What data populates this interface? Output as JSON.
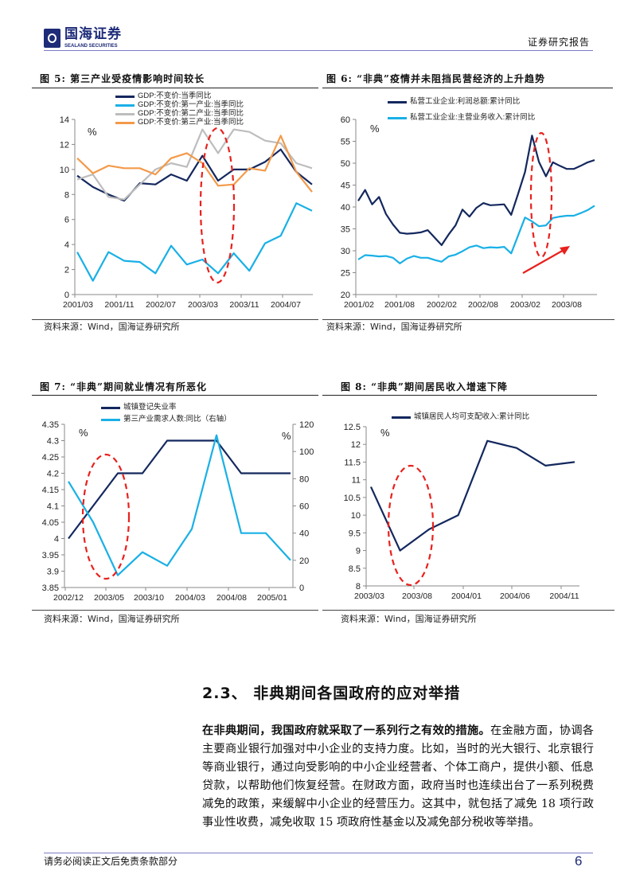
{
  "header": {
    "logo_cn": "国海证券",
    "logo_en": "SEALAND SECURITIES",
    "report_type": "证券研究报告"
  },
  "chart_data": [
    {
      "type": "line",
      "title": "图 5: 第三产业受疫情影响时间较长",
      "ylabel": "%",
      "ylim": [
        0,
        14
      ],
      "yticks": [
        0,
        2,
        4,
        6,
        8,
        10,
        12,
        14
      ],
      "xtick_labels": [
        "2001/03",
        "2001/11",
        "2002/07",
        "2003/03",
        "2003/11",
        "2004/07"
      ],
      "series": [
        {
          "name": "GDP:不变价:当季同比",
          "color": "#14285e",
          "values": [
            9.5,
            8.6,
            8.0,
            7.5,
            8.9,
            8.8,
            9.6,
            9.1,
            11.1,
            9.1,
            10.0,
            10.0,
            10.6,
            11.6,
            9.8,
            8.8
          ]
        },
        {
          "name": "GDP:不变价:第一产业:当季同比",
          "color": "#19b0e6",
          "values": [
            3.4,
            1.1,
            3.4,
            2.7,
            2.6,
            1.7,
            3.9,
            2.4,
            2.8,
            1.7,
            3.3,
            1.9,
            4.1,
            4.7,
            7.3,
            6.7
          ]
        },
        {
          "name": "GDP:不变价:第二产业:当季同比",
          "color": "#bdbdbd",
          "values": [
            9.2,
            9.6,
            7.8,
            7.6,
            8.8,
            10.0,
            10.5,
            10.2,
            13.2,
            11.3,
            13.2,
            13.0,
            12.3,
            12.1,
            10.5,
            10.1
          ]
        },
        {
          "name": "GDP:不变价:第三产业:当季同比",
          "color": "#f39a4a",
          "values": [
            10.9,
            9.7,
            10.3,
            10.1,
            10.1,
            9.6,
            10.9,
            11.3,
            10.5,
            8.7,
            8.8,
            10.1,
            9.9,
            12.7,
            9.8,
            8.2
          ]
        }
      ]
    },
    {
      "type": "line",
      "title": "图 6: “非典”疫情并未阻挡民营经济的上升趋势",
      "ylabel": "%",
      "ylim": [
        20,
        60
      ],
      "yticks": [
        20,
        25,
        30,
        35,
        40,
        45,
        50,
        55,
        60
      ],
      "xtick_labels": [
        "2001/02",
        "2001/08",
        "2002/02",
        "2002/08",
        "2003/02",
        "2003/08"
      ],
      "series": [
        {
          "name": "私营工业企业:利润总额:累计同比",
          "color": "#14285e",
          "values": [
            41.4,
            43.9,
            40.6,
            42.3,
            38.4,
            36.0,
            34.1,
            33.9,
            34.0,
            34.2,
            34.7,
            33.0,
            31.3,
            33.7,
            35.8,
            39.4,
            37.8,
            39.8,
            40.9,
            40.4,
            40.5,
            40.6,
            38.2,
            43.0,
            48.0,
            56.3,
            50.3,
            47.0,
            50.2,
            49.4,
            48.7,
            48.7,
            49.4,
            50.2,
            50.7
          ]
        },
        {
          "name": "私营工业企业:主营业务收入:累计同比",
          "color": "#19b0e6",
          "values": [
            28.0,
            29.0,
            28.9,
            28.7,
            28.8,
            28.4,
            27.1,
            28.2,
            28.8,
            28.4,
            28.4,
            27.9,
            27.5,
            28.7,
            29.1,
            29.9,
            30.8,
            31.2,
            30.6,
            30.8,
            30.7,
            30.9,
            29.4,
            33.5,
            37.6,
            36.7,
            35.6,
            35.8,
            37.5,
            37.8,
            38.0,
            38.0,
            38.6,
            39.3,
            40.3
          ]
        }
      ]
    },
    {
      "type": "line",
      "title": "图 7: “非典”期间就业情况有所恶化",
      "ylabel": "%",
      "ylabel_right": "%",
      "ylim": [
        3.85,
        4.35
      ],
      "yticks": [
        "3.85",
        "3.9",
        "3.95",
        "4",
        "4.05",
        "4.1",
        "4.15",
        "4.2",
        "4.25",
        "4.3",
        "4.35"
      ],
      "ylim_right": [
        0,
        120
      ],
      "yticks_right": [
        0,
        20,
        40,
        60,
        80,
        100,
        120
      ],
      "xtick_labels": [
        "2002/12",
        "2003/05",
        "2003/10",
        "2004/03",
        "2004/08",
        "2005/01"
      ],
      "series": [
        {
          "name": "城镇登记失业率",
          "color": "#14285e",
          "axis": "left",
          "values": [
            4.0,
            4.1,
            4.2,
            4.2,
            4.3,
            4.3,
            4.3,
            4.2,
            4.2,
            4.2
          ]
        },
        {
          "name": "第三产业需求人数:同比（右轴）",
          "color": "#19b0e6",
          "axis": "right",
          "values": [
            78,
            48,
            9,
            26,
            16,
            43,
            112,
            40,
            40,
            20
          ]
        }
      ]
    },
    {
      "type": "line",
      "title": "图 8: “非典”期间居民收入增速下降",
      "ylabel": "%",
      "ylim": [
        8,
        12.5
      ],
      "yticks": [
        "8",
        "8.5",
        "9",
        "9.5",
        "10",
        "10.5",
        "11",
        "11.5",
        "12",
        "12.5"
      ],
      "xtick_labels": [
        "2003/03",
        "2003/08",
        "2004/01",
        "2004/06",
        "2004/11"
      ],
      "series": [
        {
          "name": "城镇居民人均可支配收入:累计同比",
          "color": "#14285e",
          "values": [
            10.8,
            9.0,
            9.6,
            10.0,
            12.1,
            11.9,
            11.4,
            11.5
          ]
        }
      ]
    }
  ],
  "sources": [
    "资料来源：Wind，国海证券研究所",
    "资料来源：Wind，国海证券研究所",
    "资料来源：Wind，国海证券研究所",
    "资料来源：Wind，国海证券研究所"
  ],
  "section": {
    "heading": "2.3、 非典期间各国政府的应对举措",
    "bold_lead": "在非典期间，我国政府就采取了一系列行之有效的措施。",
    "body": "在金融方面，协调各主要商业银行加强对中小企业的支持力度。比如，当时的光大银行、北京银行等商业银行，通过向受影响的中小企业经营者、个体工商户，提供小额、低息贷款，以帮助他们恢复经营。在财政方面，政府当时也连续出台了一系列税费减免的政策，来缓解中小企业的经营压力。这其中，就包括了减免 18 项行政事业性收费，减免收取 15 项政府性基金以及减免部分税收等举措。"
  },
  "footer": {
    "disclaimer": "请务必阅读正文后免责条款部分",
    "page": "6"
  }
}
